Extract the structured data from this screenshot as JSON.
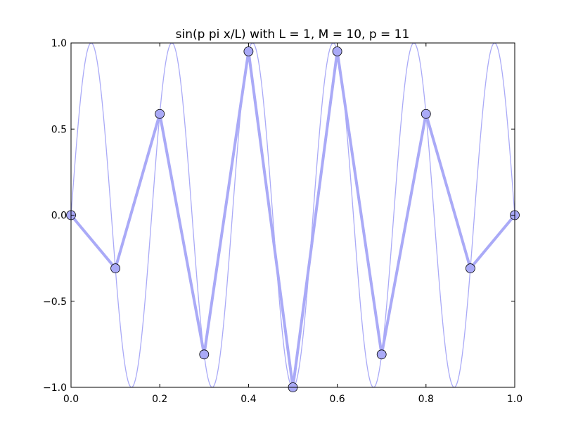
{
  "chart_data": {
    "type": "line",
    "title": "sin(p pi x/L) with L = 1, M = 10, p = 11",
    "xlabel": "",
    "ylabel": "",
    "xlim": [
      0.0,
      1.0
    ],
    "ylim": [
      -1.0,
      1.0
    ],
    "x_ticks": [
      "0.0",
      "0.2",
      "0.4",
      "0.6",
      "0.8",
      "1.0"
    ],
    "y_ticks": [
      "1.0",
      "0.5",
      "0.0",
      "−0.5",
      "−1.0"
    ],
    "grid": false,
    "legend": "none",
    "color": "#aaaaf7",
    "marker_edge": "#000000",
    "series": [
      {
        "style": "sampled-points",
        "x": [
          0.0,
          0.1,
          0.2,
          0.3,
          0.4,
          0.5,
          0.6,
          0.7,
          0.8,
          0.9,
          1.0
        ],
        "y": [
          0.0,
          -0.309,
          0.588,
          -0.809,
          0.951,
          -1.0,
          0.951,
          -0.809,
          0.588,
          -0.309,
          0.0
        ]
      },
      {
        "style": "continuous-curve",
        "function": "sin(11 pi x)",
        "x_range": [
          0.0,
          1.0
        ]
      }
    ]
  }
}
